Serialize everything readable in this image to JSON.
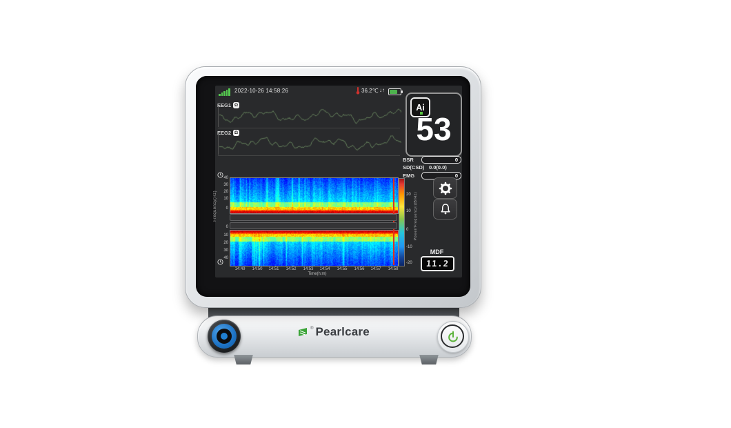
{
  "brand": {
    "name": "Pearlcare",
    "registered": "®"
  },
  "status_bar": {
    "datetime": "2022-10-26 14:58:26",
    "temperature": "36.2℃",
    "arrows": "↓↑"
  },
  "channels": [
    {
      "label": "EEG1",
      "badge": "Ω"
    },
    {
      "label": "EEG2",
      "badge": "Ω"
    }
  ],
  "index_panel": {
    "badge": "Ai",
    "value": "53"
  },
  "metrics": {
    "bsr": {
      "label": "BSR",
      "value": "0"
    },
    "sd": {
      "label": "SD(CSD)",
      "value": "0.0(0.0)"
    },
    "emg": {
      "label": "EMG",
      "value": "0"
    }
  },
  "mdf": {
    "label": "MDF",
    "value": "11.2"
  },
  "spectrogram": {
    "freq_axis_label": "Frequency(Hz)",
    "freq_ticks_top": [
      "40",
      "30",
      "20",
      "10",
      "0"
    ],
    "freq_ticks_bottom": [
      "0",
      "10",
      "20",
      "30",
      "40"
    ],
    "time_ticks": [
      "14:49",
      "14:50",
      "14:51",
      "14:52",
      "14:53",
      "14:54",
      "14:55",
      "14:56",
      "14:57",
      "14:58"
    ],
    "time_axis_label": "Time(h:m)",
    "colorbar_label": "Power/Frequency(dB/Hz)",
    "colorbar_ticks": [
      "20",
      "10",
      "0",
      "-10",
      "-20"
    ]
  },
  "colors": {
    "wave_green": "#65805c",
    "signal_green": "#55c94f",
    "battery_green": "#4db34d",
    "alarm_red": "#e0301e",
    "knob_blue": "#1d72c4",
    "power_green": "#5cb33c",
    "brand_green": "#3aa437"
  }
}
